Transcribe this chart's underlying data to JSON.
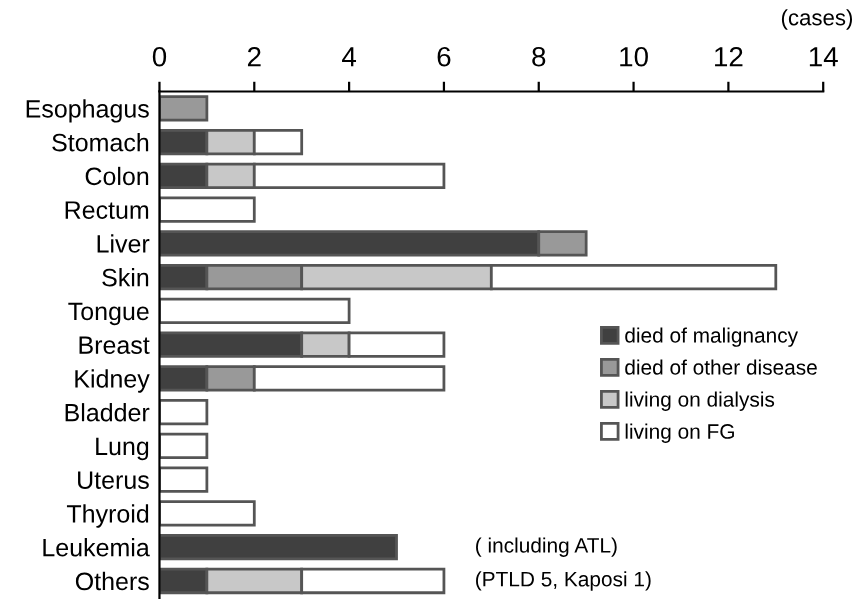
{
  "chart_data": {
    "type": "bar",
    "orientation": "horizontal",
    "stacked": true,
    "xlabel": "(cases)",
    "categories": [
      "Esophagus",
      "Stomach",
      "Colon",
      "Rectum",
      "Liver",
      "Skin",
      "Tongue",
      "Breast",
      "Kidney",
      "Bladder",
      "Lung",
      "Uterus",
      "Thyroid",
      "Leukemia",
      "Others"
    ],
    "series": [
      {
        "name": "died of malignancy",
        "color": "#404040",
        "values": [
          null,
          1,
          1,
          null,
          8,
          1,
          null,
          3,
          1,
          null,
          null,
          null,
          null,
          5,
          1
        ]
      },
      {
        "name": "died of other disease",
        "color": "#999999",
        "values": [
          1,
          null,
          null,
          null,
          1,
          2,
          null,
          null,
          1,
          null,
          null,
          null,
          null,
          null,
          null
        ]
      },
      {
        "name": "living on dialysis",
        "color": "#c8c8c8",
        "values": [
          null,
          1,
          1,
          null,
          null,
          4,
          null,
          1,
          null,
          null,
          null,
          null,
          null,
          null,
          2
        ]
      },
      {
        "name": "living on FG",
        "color": "#ffffff",
        "values": [
          null,
          1,
          4,
          2,
          null,
          6,
          4,
          2,
          4,
          1,
          1,
          1,
          2,
          null,
          3
        ]
      }
    ],
    "xlim": [
      0,
      14
    ],
    "xticks": [
      0,
      2,
      4,
      6,
      8,
      10,
      12,
      14
    ],
    "legend": "right",
    "grid": false,
    "annotations": [
      "( including ATL)",
      "(PTLD 5, Kaposi 1)"
    ]
  }
}
